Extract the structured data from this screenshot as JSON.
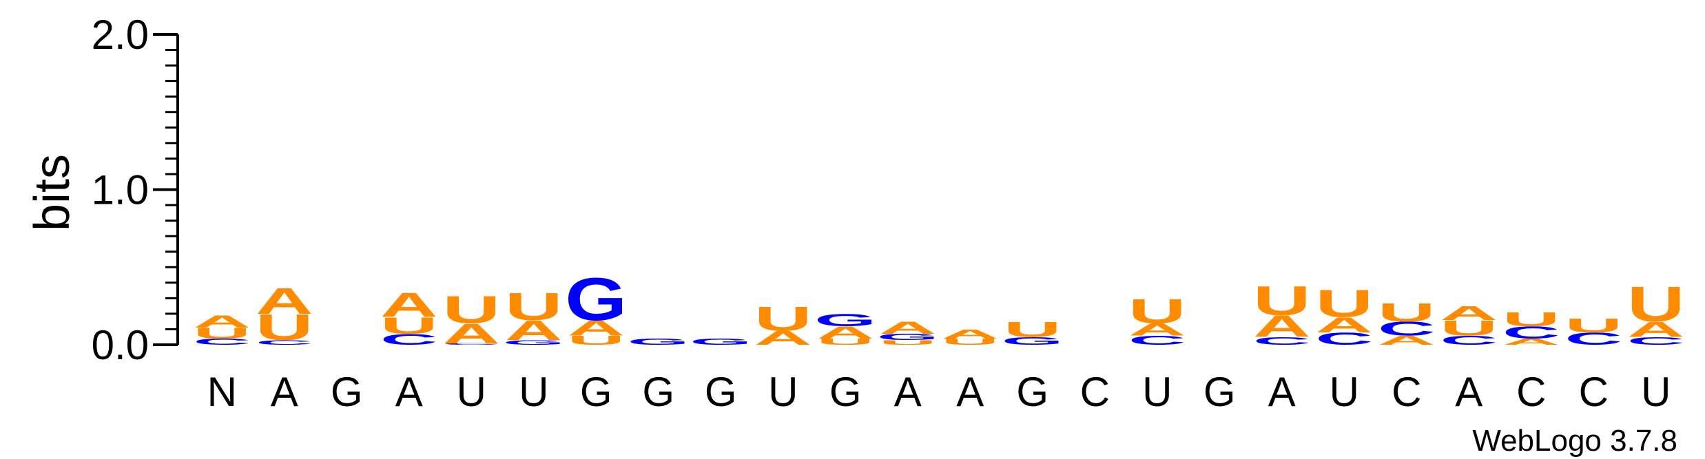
{
  "chart_data": {
    "type": "sequence-logo",
    "ylabel": "bits",
    "ylim": [
      0,
      2
    ],
    "yticks": [
      "0.0",
      "1.0",
      "2.0"
    ],
    "credit": "WebLogo 3.7.8",
    "colors": {
      "A": "#ff8c00",
      "U": "#ff8c00",
      "G": "#0000ff",
      "C": "#0000ff"
    },
    "positions": [
      {
        "label": "N",
        "letters": [
          {
            "l": "C",
            "h": 0.04
          },
          {
            "l": "U",
            "h": 0.07
          },
          {
            "l": "A",
            "h": 0.08
          }
        ]
      },
      {
        "label": "A",
        "letters": [
          {
            "l": "C",
            "h": 0.03
          },
          {
            "l": "U",
            "h": 0.17
          },
          {
            "l": "A",
            "h": 0.17
          }
        ]
      },
      {
        "label": "G",
        "letters": []
      },
      {
        "label": "A",
        "letters": [
          {
            "l": "C",
            "h": 0.07
          },
          {
            "l": "U",
            "h": 0.11
          },
          {
            "l": "A",
            "h": 0.16
          }
        ]
      },
      {
        "label": "U",
        "letters": [
          {
            "l": "C",
            "h": 0.01
          },
          {
            "l": "A",
            "h": 0.13
          },
          {
            "l": "U",
            "h": 0.18
          }
        ]
      },
      {
        "label": "U",
        "letters": [
          {
            "l": "G",
            "h": 0.03
          },
          {
            "l": "A",
            "h": 0.13
          },
          {
            "l": "U",
            "h": 0.18
          }
        ]
      },
      {
        "label": "G",
        "letters": [
          {
            "l": "U",
            "h": 0.06
          },
          {
            "l": "A",
            "h": 0.1
          },
          {
            "l": "G",
            "h": 0.28
          }
        ]
      },
      {
        "label": "G",
        "letters": [
          {
            "l": "G",
            "h": 0.04
          }
        ]
      },
      {
        "label": "G",
        "letters": [
          {
            "l": "G",
            "h": 0.04
          }
        ]
      },
      {
        "label": "U",
        "letters": [
          {
            "l": "A",
            "h": 0.09
          },
          {
            "l": "U",
            "h": 0.16
          }
        ]
      },
      {
        "label": "G",
        "letters": [
          {
            "l": "U",
            "h": 0.04
          },
          {
            "l": "A",
            "h": 0.08
          },
          {
            "l": "G",
            "h": 0.08
          }
        ]
      },
      {
        "label": "A",
        "letters": [
          {
            "l": "U",
            "h": 0.03
          },
          {
            "l": "G",
            "h": 0.04
          },
          {
            "l": "A",
            "h": 0.08
          }
        ]
      },
      {
        "label": "A",
        "letters": [
          {
            "l": "U",
            "h": 0.04
          },
          {
            "l": "A",
            "h": 0.06
          }
        ]
      },
      {
        "label": "G",
        "letters": [
          {
            "l": "G",
            "h": 0.05
          },
          {
            "l": "U",
            "h": 0.1
          }
        ]
      },
      {
        "label": "C",
        "letters": []
      },
      {
        "label": "U",
        "letters": [
          {
            "l": "C",
            "h": 0.06
          },
          {
            "l": "A",
            "h": 0.08
          },
          {
            "l": "U",
            "h": 0.16
          }
        ]
      },
      {
        "label": "G",
        "letters": []
      },
      {
        "label": "A",
        "letters": [
          {
            "l": "C",
            "h": 0.05
          },
          {
            "l": "A",
            "h": 0.14
          },
          {
            "l": "U",
            "h": 0.19
          }
        ]
      },
      {
        "label": "U",
        "letters": [
          {
            "l": "C",
            "h": 0.08
          },
          {
            "l": "A",
            "h": 0.1
          },
          {
            "l": "U",
            "h": 0.18
          }
        ]
      },
      {
        "label": "C",
        "letters": [
          {
            "l": "A",
            "h": 0.06
          },
          {
            "l": "C",
            "h": 0.09
          },
          {
            "l": "U",
            "h": 0.12
          }
        ]
      },
      {
        "label": "A",
        "letters": [
          {
            "l": "C",
            "h": 0.06
          },
          {
            "l": "U",
            "h": 0.1
          },
          {
            "l": "A",
            "h": 0.09
          }
        ]
      },
      {
        "label": "C",
        "letters": [
          {
            "l": "A",
            "h": 0.04
          },
          {
            "l": "C",
            "h": 0.08
          },
          {
            "l": "U",
            "h": 0.09
          }
        ]
      },
      {
        "label": "C",
        "letters": [
          {
            "l": "C",
            "h": 0.08
          },
          {
            "l": "U",
            "h": 0.09
          }
        ]
      },
      {
        "label": "U",
        "letters": [
          {
            "l": "C",
            "h": 0.05
          },
          {
            "l": "A",
            "h": 0.1
          },
          {
            "l": "U",
            "h": 0.23
          }
        ]
      }
    ]
  }
}
